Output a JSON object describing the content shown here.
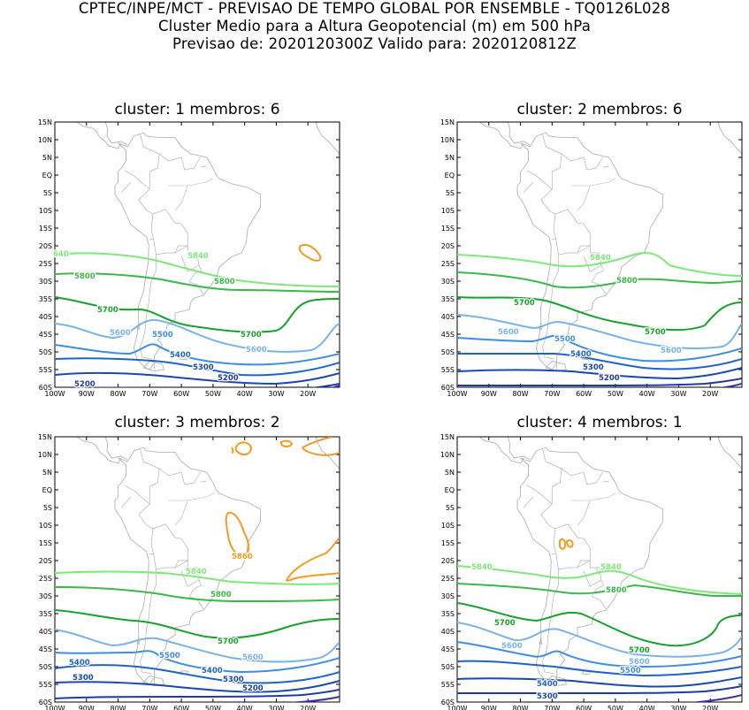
{
  "header": {
    "line1": "CPTEC/INPE/MCT - PREVISAO DE TEMPO GLOBAL POR ENSEMBLE - TQ0126L028",
    "line2": "Cluster Medio para a Altura Geopotencial (m) em 500 hPa",
    "line3": "Previsao de: 2020120300Z    Valido para: 2020120812Z"
  },
  "axes": {
    "lat_labels": [
      "15N",
      "10N",
      "5N",
      "EQ",
      "5S",
      "10S",
      "15S",
      "20S",
      "25S",
      "30S",
      "35S",
      "40S",
      "45S",
      "50S",
      "55S",
      "60S"
    ],
    "lon_labels": [
      "100W",
      "90W",
      "80W",
      "70W",
      "60W",
      "50W",
      "40W",
      "30W",
      "20W"
    ]
  },
  "colors": {
    "c5860": "#f59a23",
    "c5840": "#7ee87a",
    "c5800": "#3cb84a",
    "c5700": "#16a22a",
    "c5600": "#78b4ea",
    "c5500": "#3c8ee2",
    "c5400": "#1e64c8",
    "c5300": "#1848b0",
    "c5200": "#203aa0",
    "c5100": "#4030a0",
    "coast": "#b4b4b4"
  },
  "panels": [
    {
      "title": "cluster: 1   membros: 6",
      "labels": {
        "l5840a": "640",
        "l5840b": "5840",
        "l5800a": "5800",
        "l5800b": "5800",
        "l5700a": "5700",
        "l5700b": "5700",
        "l5600a": "5600",
        "l5600b": "5600",
        "l5500": "5500",
        "l5400": "5400",
        "l5300": "5300",
        "l5200a": "5200",
        "l5200b": "5200"
      }
    },
    {
      "title": "cluster: 2   membros: 6",
      "labels": {
        "l5840": "5840",
        "l5800": "5800",
        "l5700a": "5700",
        "l5700b": "5700",
        "l5600a": "5600",
        "l5600b": "5600",
        "l5500": "5500",
        "l5400": "5400",
        "l5300": "5300",
        "l5200": "5200"
      }
    },
    {
      "title": "cluster: 3   membros: 2",
      "labels": {
        "l5860": "5860",
        "l5840": "5840",
        "l5800": "5800",
        "l5700": "5700",
        "l5600": "5600",
        "l5500": "5500",
        "l5400a": "5400",
        "l5400b": "5400",
        "l5300a": "5300",
        "l5300b": "5300",
        "l5200": "5200"
      }
    },
    {
      "title": "cluster: 4   membros: 1",
      "labels": {
        "l5840a": "5840",
        "l5840b": "5840",
        "l5800": "5800",
        "l5700a": "5700",
        "l5700b": "5700",
        "l5600a": "5600",
        "l5600b": "5600",
        "l5500": "5500",
        "l5400": "5400",
        "l5300": "5300"
      }
    }
  ]
}
